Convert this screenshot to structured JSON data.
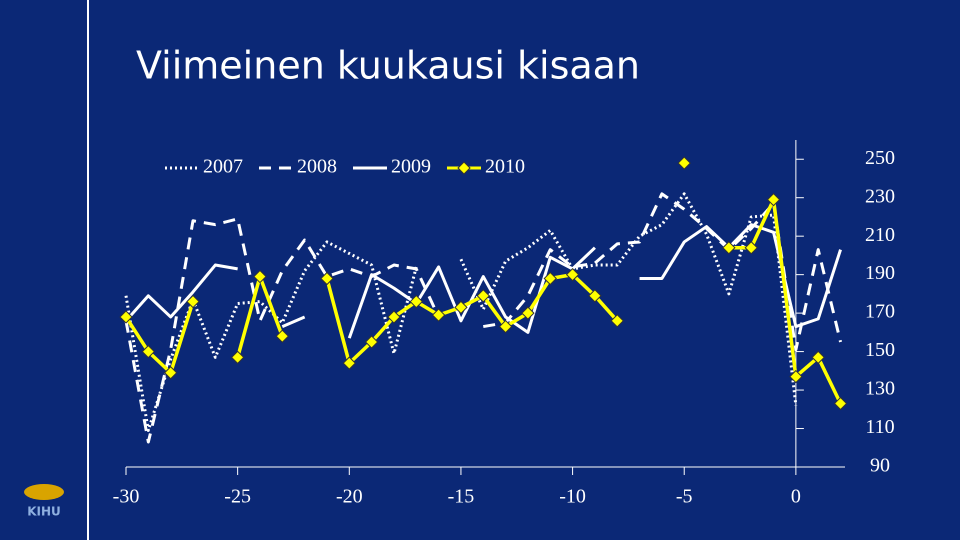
{
  "logo": "KIHU",
  "chart_data": {
    "type": "line",
    "title": "Viimeinen kuukausi kisaan",
    "x": [
      -30,
      -29,
      -28,
      -27,
      -26,
      -25,
      -24,
      -23,
      -22,
      -21,
      -20,
      -19,
      -18,
      -17,
      -16,
      -15,
      -14,
      -13,
      -12,
      -11,
      -10,
      -9,
      -8,
      -7,
      -6,
      -5,
      -4,
      -3,
      -2,
      -1,
      0,
      1,
      2
    ],
    "series": [
      {
        "name": "2007",
        "color": "#ffffff",
        "style": "dotted",
        "values": [
          179,
          109,
          146,
          177,
          147,
          175,
          176,
          165,
          192,
          207,
          201,
          195,
          149,
          194,
          null,
          198,
          172,
          197,
          204,
          213,
          193,
          195,
          195,
          210,
          216,
          232,
          211,
          180,
          220,
          221,
          122,
          null,
          null
        ]
      },
      {
        "name": "2008",
        "color": "#ffffff",
        "style": "dashed",
        "values": [
          166,
          103,
          151,
          218,
          216,
          219,
          166,
          192,
          208,
          189,
          193,
          189,
          195,
          193,
          168,
          null,
          163,
          165,
          179,
          203,
          194,
          196,
          206,
          207,
          232,
          224,
          214,
          203,
          214,
          227,
          151,
          203,
          155
        ]
      },
      {
        "name": "2009",
        "color": "#ffffff",
        "style": "solid",
        "values": [
          166,
          179,
          168,
          181,
          195,
          193,
          null,
          163,
          168,
          null,
          157,
          190,
          183,
          175,
          194,
          166,
          189,
          168,
          160,
          199,
          193,
          204,
          null,
          188,
          188,
          207,
          215,
          204,
          216,
          212,
          163,
          167,
          203
        ]
      },
      {
        "name": "2010",
        "color": "#ffff00",
        "style": "solid",
        "marker": "diamond",
        "values": [
          168,
          150,
          139,
          176,
          null,
          147,
          189,
          158,
          null,
          188,
          144,
          155,
          168,
          176,
          169,
          173,
          179,
          163,
          170,
          188,
          190,
          179,
          166,
          null,
          null,
          248,
          null,
          204,
          204,
          229,
          137,
          147,
          123
        ]
      }
    ],
    "xlim": [
      -30,
      2.2
    ],
    "xticks": [
      -30,
      -25,
      -20,
      -15,
      -10,
      -5,
      0
    ],
    "ylim": [
      90,
      260
    ],
    "yticks": [
      90,
      110,
      130,
      150,
      170,
      190,
      210,
      230,
      250
    ]
  }
}
